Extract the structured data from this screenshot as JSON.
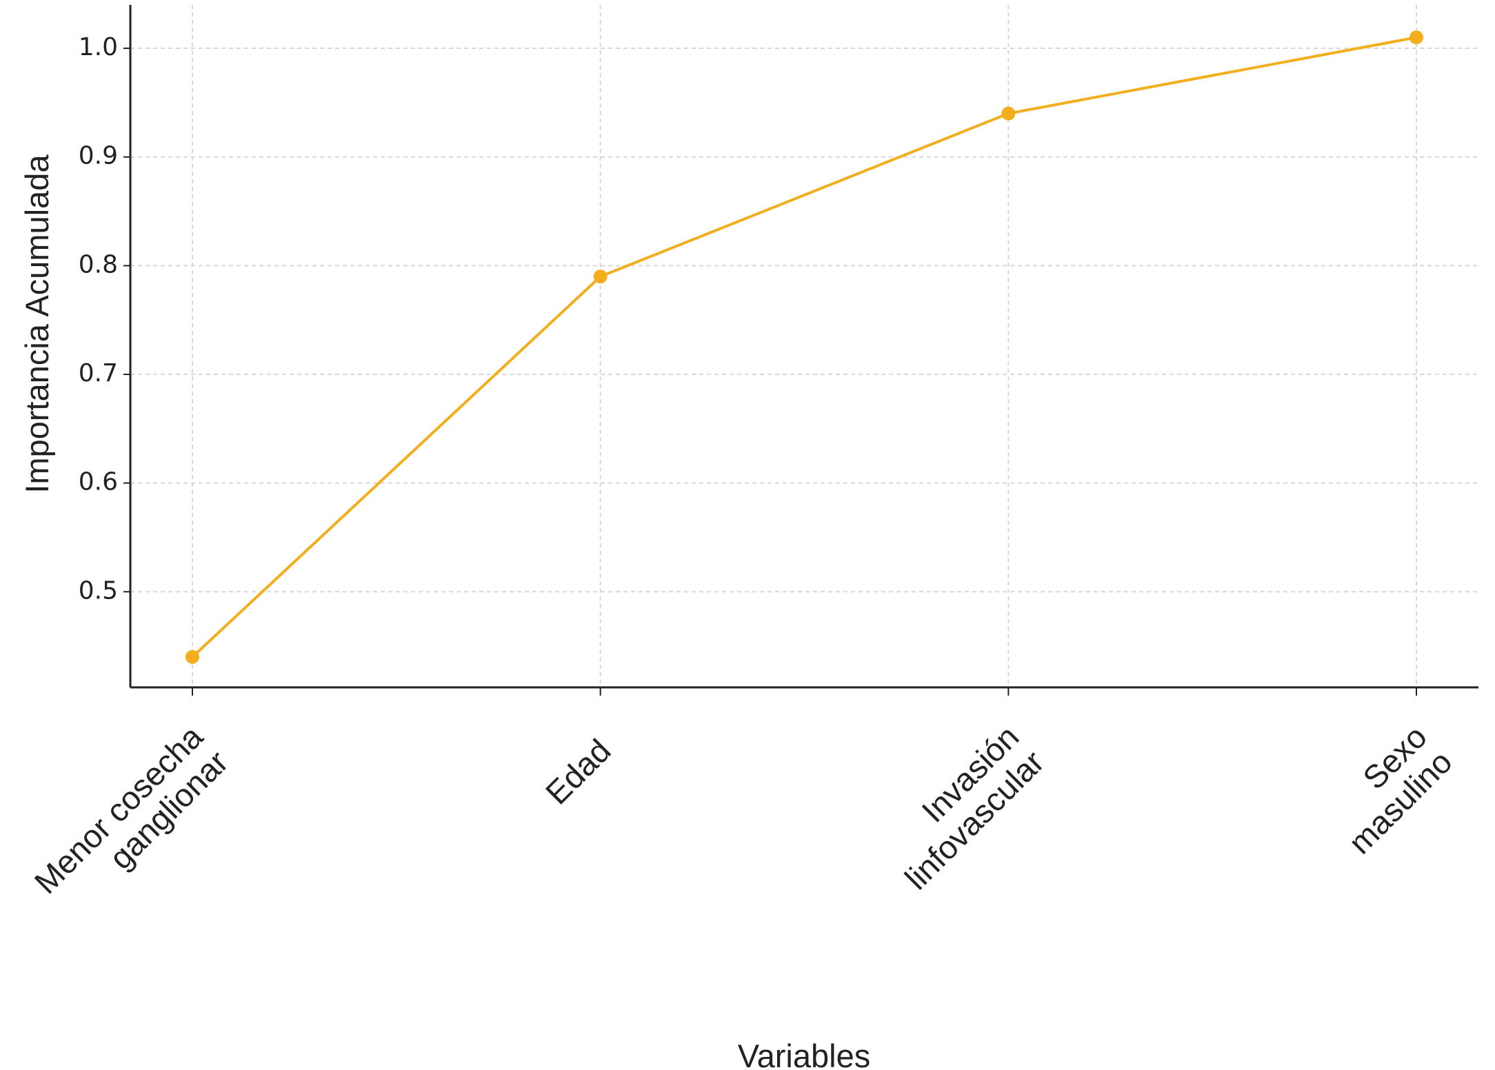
{
  "chart_data": {
    "type": "line",
    "x_label": "Variables",
    "y_label": "Importancia Acumulada",
    "categories": [
      "Menor cosecha\nganglionar",
      "Edad",
      "Invasión\nlinfovascular",
      "Sexo\nmasulino"
    ],
    "series": [
      {
        "name": "Importancia Acumulada",
        "color": "#f2ae1c",
        "values": [
          0.44,
          0.79,
          0.94,
          1.01
        ]
      }
    ],
    "ylim": [
      0.412,
      1.04
    ],
    "yticks": [
      {
        "value": 0.5,
        "label": "0.5"
      },
      {
        "value": 0.6,
        "label": "0.6"
      },
      {
        "value": 0.7,
        "label": "0.7"
      },
      {
        "value": 0.8,
        "label": "0.8"
      },
      {
        "value": 0.9,
        "label": "0.9"
      },
      {
        "value": 1.0,
        "label": "1.0"
      }
    ],
    "grid": true
  }
}
